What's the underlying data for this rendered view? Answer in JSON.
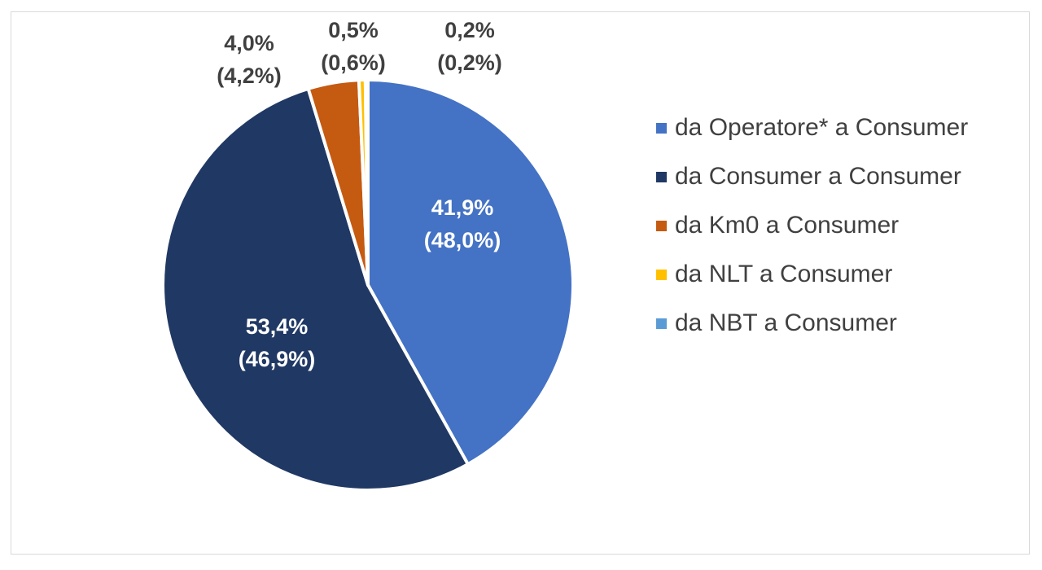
{
  "chart_data": {
    "type": "pie",
    "slices": [
      {
        "name": "da Operatore* a Consumer",
        "value": 41.9,
        "label": "41,9%",
        "sublabel": "(48,0%)",
        "color": "#4472c4",
        "label_color": "#ffffff",
        "label_placement": "inside"
      },
      {
        "name": "da Consumer a Consumer",
        "value": 53.4,
        "label": "53,4%",
        "sublabel": "(46,9%)",
        "color": "#203864",
        "label_color": "#ffffff",
        "label_placement": "inside"
      },
      {
        "name": "da Km0 a Consumer",
        "value": 4.0,
        "label": "4,0%",
        "sublabel": "(4,2%)",
        "color": "#c55a11",
        "label_color": "#404040",
        "label_placement": "outside"
      },
      {
        "name": "da NLT a Consumer",
        "value": 0.5,
        "label": "0,5%",
        "sublabel": "(0,6%)",
        "color": "#ffc000",
        "label_color": "#404040",
        "label_placement": "outside"
      },
      {
        "name": "da NBT a Consumer",
        "value": 0.2,
        "label": "0,2%",
        "sublabel": "(0,2%)",
        "color": "#5b9bd5",
        "label_color": "#404040",
        "label_placement": "outside"
      }
    ],
    "legend": {
      "position": "right",
      "items": [
        {
          "label": "da Operatore* a Consumer",
          "color": "#4472c4"
        },
        {
          "label": "da Consumer a Consumer",
          "color": "#203864"
        },
        {
          "label": "da Km0 a Consumer",
          "color": "#c55a11"
        },
        {
          "label": "da NLT a Consumer",
          "color": "#ffc000"
        },
        {
          "label": "da NBT a Consumer",
          "color": "#5b9bd5"
        }
      ]
    }
  }
}
